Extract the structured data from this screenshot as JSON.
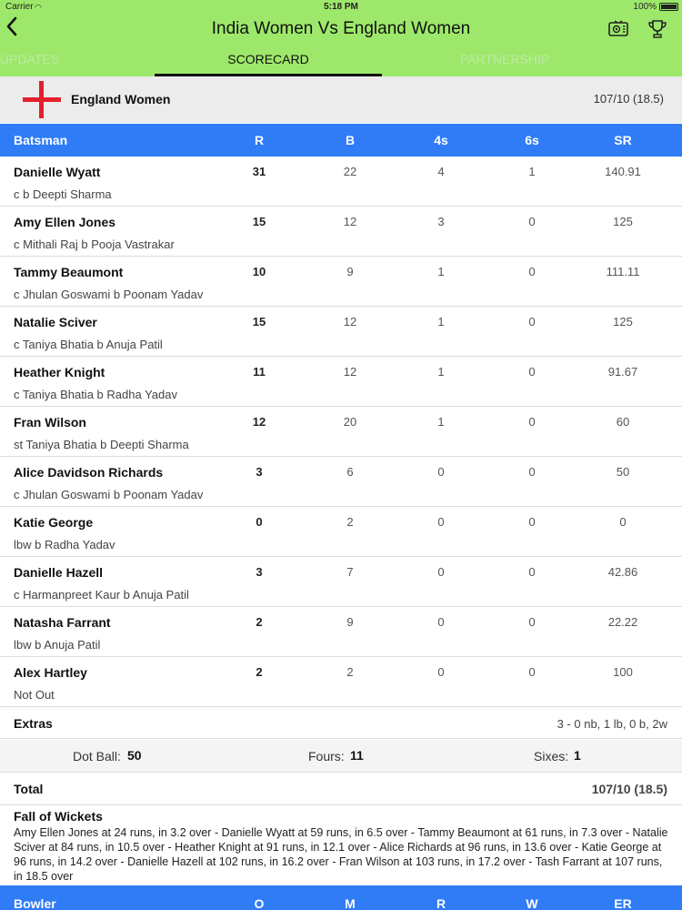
{
  "status_bar": {
    "carrier": "Carrier",
    "time": "5:18 PM",
    "battery": "100%"
  },
  "nav": {
    "title": "India Women Vs England Women",
    "back_icon": "chevron-left-icon",
    "tv_icon": "tv-icon",
    "trophy_icon": "trophy-icon"
  },
  "tabs": [
    "UPDATES",
    "SCORECARD",
    "PARTNERSHIP"
  ],
  "active_tab": "SCORECARD",
  "team": {
    "name": "England Women",
    "score": "107/10 (18.5)",
    "flag_color": "#e3202c"
  },
  "batting_header": {
    "batsman": "Batsman",
    "r": "R",
    "b": "B",
    "fours": "4s",
    "sixes": "6s",
    "sr": "SR"
  },
  "batsmen": [
    {
      "name": "Danielle Wyatt",
      "dismissal": "c b Deepti Sharma",
      "r": "31",
      "b": "22",
      "fours": "4",
      "sixes": "1",
      "sr": "140.91"
    },
    {
      "name": "Amy Ellen Jones",
      "dismissal": "c Mithali Raj b Pooja Vastrakar",
      "r": "15",
      "b": "12",
      "fours": "3",
      "sixes": "0",
      "sr": "125"
    },
    {
      "name": "Tammy Beaumont",
      "dismissal": "c Jhulan Goswami b Poonam Yadav",
      "r": "10",
      "b": "9",
      "fours": "1",
      "sixes": "0",
      "sr": "111.11"
    },
    {
      "name": "Natalie Sciver",
      "dismissal": "c Taniya Bhatia b Anuja Patil",
      "r": "15",
      "b": "12",
      "fours": "1",
      "sixes": "0",
      "sr": "125"
    },
    {
      "name": "Heather Knight",
      "dismissal": "c Taniya Bhatia b Radha Yadav",
      "r": "11",
      "b": "12",
      "fours": "1",
      "sixes": "0",
      "sr": "91.67"
    },
    {
      "name": "Fran Wilson",
      "dismissal": "st Taniya Bhatia b Deepti Sharma",
      "r": "12",
      "b": "20",
      "fours": "1",
      "sixes": "0",
      "sr": "60"
    },
    {
      "name": "Alice Davidson Richards",
      "dismissal": "c Jhulan Goswami b Poonam Yadav",
      "r": "3",
      "b": "6",
      "fours": "0",
      "sixes": "0",
      "sr": "50"
    },
    {
      "name": "Katie George",
      "dismissal": "lbw b Radha Yadav",
      "r": "0",
      "b": "2",
      "fours": "0",
      "sixes": "0",
      "sr": "0"
    },
    {
      "name": "Danielle Hazell",
      "dismissal": "c Harmanpreet Kaur b Anuja Patil",
      "r": "3",
      "b": "7",
      "fours": "0",
      "sixes": "0",
      "sr": "42.86"
    },
    {
      "name": "Natasha Farrant",
      "dismissal": "lbw b Anuja Patil",
      "r": "2",
      "b": "9",
      "fours": "0",
      "sixes": "0",
      "sr": "22.22"
    },
    {
      "name": "Alex Hartley",
      "dismissal": "Not Out",
      "r": "2",
      "b": "2",
      "fours": "0",
      "sixes": "0",
      "sr": "100"
    }
  ],
  "extras": {
    "label": "Extras",
    "value": "3 - 0 nb, 1 lb, 0 b, 2w"
  },
  "summary": {
    "dot_ball_label": "Dot Ball:",
    "dot_ball_value": "50",
    "fours_label": "Fours:",
    "fours_value": "11",
    "sixes_label": "Sixes:",
    "sixes_value": "1"
  },
  "total": {
    "label": "Total",
    "value": "107/10 (18.5)"
  },
  "fall_of_wickets": {
    "title": "Fall of Wickets",
    "text": "Amy Ellen Jones at 24 runs, in 3.2 over - Danielle Wyatt at 59 runs, in 6.5 over - Tammy Beaumont at 61 runs, in 7.3 over - Natalie Sciver at 84 runs, in 10.5 over - Heather Knight at 91 runs, in 12.1 over - Alice Richards at 96 runs, in 13.6 over - Katie George at 96 runs, in 14.2 over - Danielle Hazell at 102 runs, in 16.2 over - Fran Wilson at 103 runs, in 17.2 over - Tash Farrant at 107 runs, in 18.5 over"
  },
  "bowling_header": {
    "bowler": "Bowler",
    "o": "O",
    "m": "M",
    "r": "R",
    "w": "W",
    "er": "ER"
  },
  "colors": {
    "header_green": "#9de86a",
    "table_header_blue": "#2f7cf6",
    "flag_red": "#e3202c"
  }
}
